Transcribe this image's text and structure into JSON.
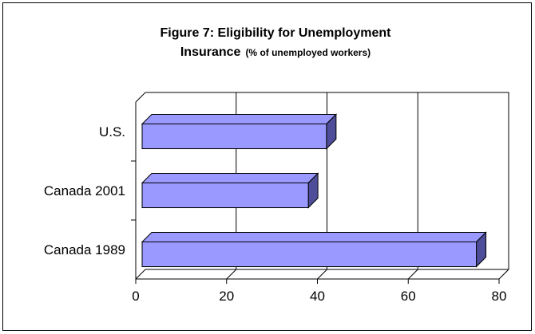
{
  "chart_data": {
    "type": "bar",
    "orientation": "horizontal",
    "title_line1": "Figure 7: Eligibility for Unemployment",
    "title_line2_main": "Insurance",
    "title_line2_sub": "(% of unemployed workers)",
    "categories": [
      "U.S.",
      "Canada 2001",
      "Canada 1989"
    ],
    "values": [
      42,
      38,
      75
    ],
    "xlim": [
      0,
      80
    ],
    "x_ticks": [
      "0",
      "20",
      "40",
      "60",
      "80"
    ],
    "grid": true,
    "bar_color": "#9999ff",
    "bar_side_color": "#4d4d99"
  }
}
